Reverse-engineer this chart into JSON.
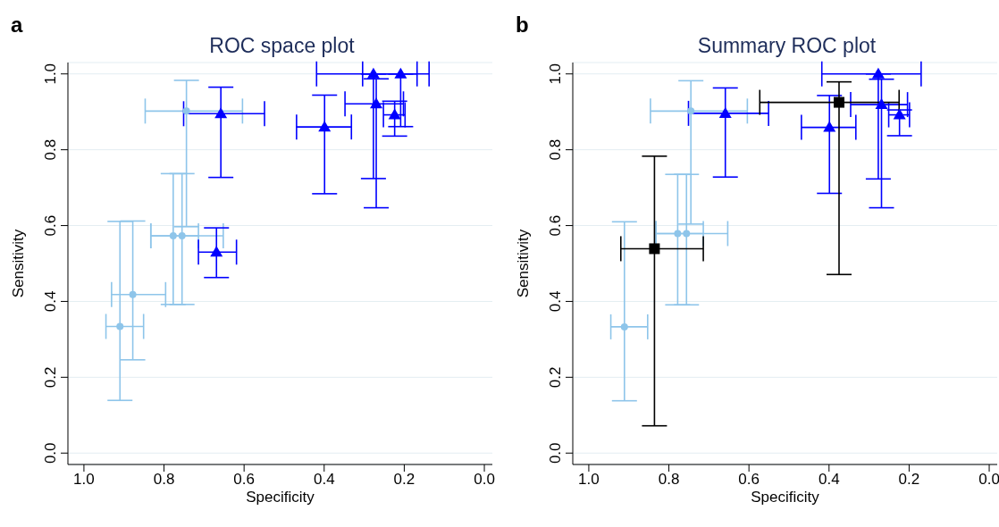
{
  "chart_data": [
    {
      "type": "scatter",
      "title": "ROC space plot",
      "annotations": [
        "a"
      ],
      "xlabel": "Specificity",
      "ylabel": "Sensitivity",
      "xlim": [
        1.04,
        -0.02
      ],
      "xticks": [
        {
          "value": 1,
          "label": "1.0"
        },
        {
          "value": 0.8,
          "label": "0.8"
        },
        {
          "value": 0.6,
          "label": "0.6"
        },
        {
          "value": 0.4,
          "label": "0.4"
        },
        {
          "value": 0.2,
          "label": "0.2"
        },
        {
          "value": 0,
          "label": "0.0"
        }
      ],
      "ylim": [
        -0.03,
        1.03
      ],
      "yticks": [
        {
          "value": 0,
          "label": "0.0"
        },
        {
          "value": 0.2,
          "label": "0.2"
        },
        {
          "value": 0.4,
          "label": "0.4"
        },
        {
          "value": 0.6,
          "label": "0.6"
        },
        {
          "value": 0.8,
          "label": "0.8"
        },
        {
          "value": 1,
          "label": "1.0"
        }
      ],
      "grid": "y",
      "series": [
        {
          "color": "#8ec5ea",
          "marker": "circle",
          "x": [
            0.91,
            0.878,
            0.777,
            0.755,
            0.744
          ],
          "values": [
            0.334,
            0.418,
            0.573,
            0.573,
            0.902
          ],
          "errors": [
            [
              0.139,
              0.611
            ],
            [
              0.246,
              0.612
            ],
            [
              0.392,
              0.737
            ],
            [
              0.392,
              0.737
            ],
            [
              0.597,
              0.983
            ]
          ],
          "xerrors": [
            [
              0.851,
              0.945
            ],
            [
              0.796,
              0.931
            ],
            [
              0.714,
              0.833
            ],
            [
              0.652,
              0.833
            ],
            [
              0.604,
              0.847
            ]
          ]
        },
        {
          "color": "#0000ff",
          "marker": "triangle",
          "x": [
            0.658,
            0.669,
            0.399,
            0.277,
            0.209,
            0.27,
            0.224
          ],
          "values": [
            0.895,
            0.53,
            0.86,
            1.0,
            1.0,
            0.921,
            0.892
          ],
          "errors": [
            [
              0.727,
              0.965
            ],
            [
              0.463,
              0.594
            ],
            [
              0.684,
              0.944
            ],
            [
              0.724,
              1.0
            ],
            [
              0.861,
              1.0
            ],
            [
              0.647,
              0.987
            ],
            [
              0.836,
              0.928
            ]
          ],
          "xerrors": [
            [
              0.549,
              0.751
            ],
            [
              0.619,
              0.714
            ],
            [
              0.332,
              0.469
            ],
            [
              0.168,
              0.419
            ],
            [
              0.138,
              0.304
            ],
            [
              0.202,
              0.348
            ],
            [
              0.198,
              0.252
            ]
          ]
        }
      ]
    },
    {
      "type": "scatter",
      "title": "Summary ROC plot",
      "annotations": [
        "b"
      ],
      "xlabel": "Specificity",
      "ylabel": "Sensitivity",
      "xlim": [
        1.04,
        -0.02
      ],
      "xticks": [
        {
          "value": 1,
          "label": "1.0"
        },
        {
          "value": 0.8,
          "label": "0.8"
        },
        {
          "value": 0.6,
          "label": "0.6"
        },
        {
          "value": 0.4,
          "label": "0.4"
        },
        {
          "value": 0.2,
          "label": "0.2"
        },
        {
          "value": 0,
          "label": "0.0"
        }
      ],
      "ylim": [
        -0.03,
        1.03
      ],
      "yticks": [
        {
          "value": 0,
          "label": "0.0"
        },
        {
          "value": 0.2,
          "label": "0.2"
        },
        {
          "value": 0.4,
          "label": "0.4"
        },
        {
          "value": 0.6,
          "label": "0.6"
        },
        {
          "value": 0.8,
          "label": "0.8"
        },
        {
          "value": 1,
          "label": "1.0"
        }
      ],
      "grid": "y",
      "series": [
        {
          "color": "#8ec5ea",
          "marker": "circle",
          "x": [
            0.911,
            0.778,
            0.756,
            0.745
          ],
          "values": [
            0.333,
            0.579,
            0.579,
            0.902
          ],
          "errors": [
            [
              0.138,
              0.61
            ],
            [
              0.391,
              0.735
            ],
            [
              0.391,
              0.735
            ],
            [
              0.604,
              0.982
            ]
          ],
          "xerrors": [
            [
              0.853,
              0.945
            ],
            [
              0.714,
              0.832
            ],
            [
              0.653,
              0.832
            ],
            [
              0.604,
              0.846
            ]
          ]
        },
        {
          "color": "#0000ff",
          "marker": "triangle",
          "x": [
            0.659,
            0.399,
            0.277,
            0.269,
            0.224
          ],
          "values": [
            0.896,
            0.859,
            1.0,
            0.919,
            0.892
          ],
          "errors": [
            [
              0.728,
              0.963
            ],
            [
              0.685,
              0.943
            ],
            [
              0.723,
              1.0
            ],
            [
              0.647,
              0.986
            ],
            [
              0.837,
              0.905
            ]
          ],
          "xerrors": [
            [
              0.551,
              0.751
            ],
            [
              0.333,
              0.469
            ],
            [
              0.17,
              0.418
            ],
            [
              0.204,
              0.346
            ],
            [
              0.199,
              0.251
            ]
          ]
        },
        {
          "color": "#000000",
          "marker": "square",
          "x": [
            0.836,
            0.375
          ],
          "values": [
            0.539,
            0.925
          ],
          "errors": [
            [
              0.072,
              0.783
            ],
            [
              0.471,
              0.979
            ]
          ],
          "xerrors": [
            [
              0.714,
              0.92
            ],
            [
              0.225,
              0.573
            ]
          ]
        }
      ]
    }
  ]
}
